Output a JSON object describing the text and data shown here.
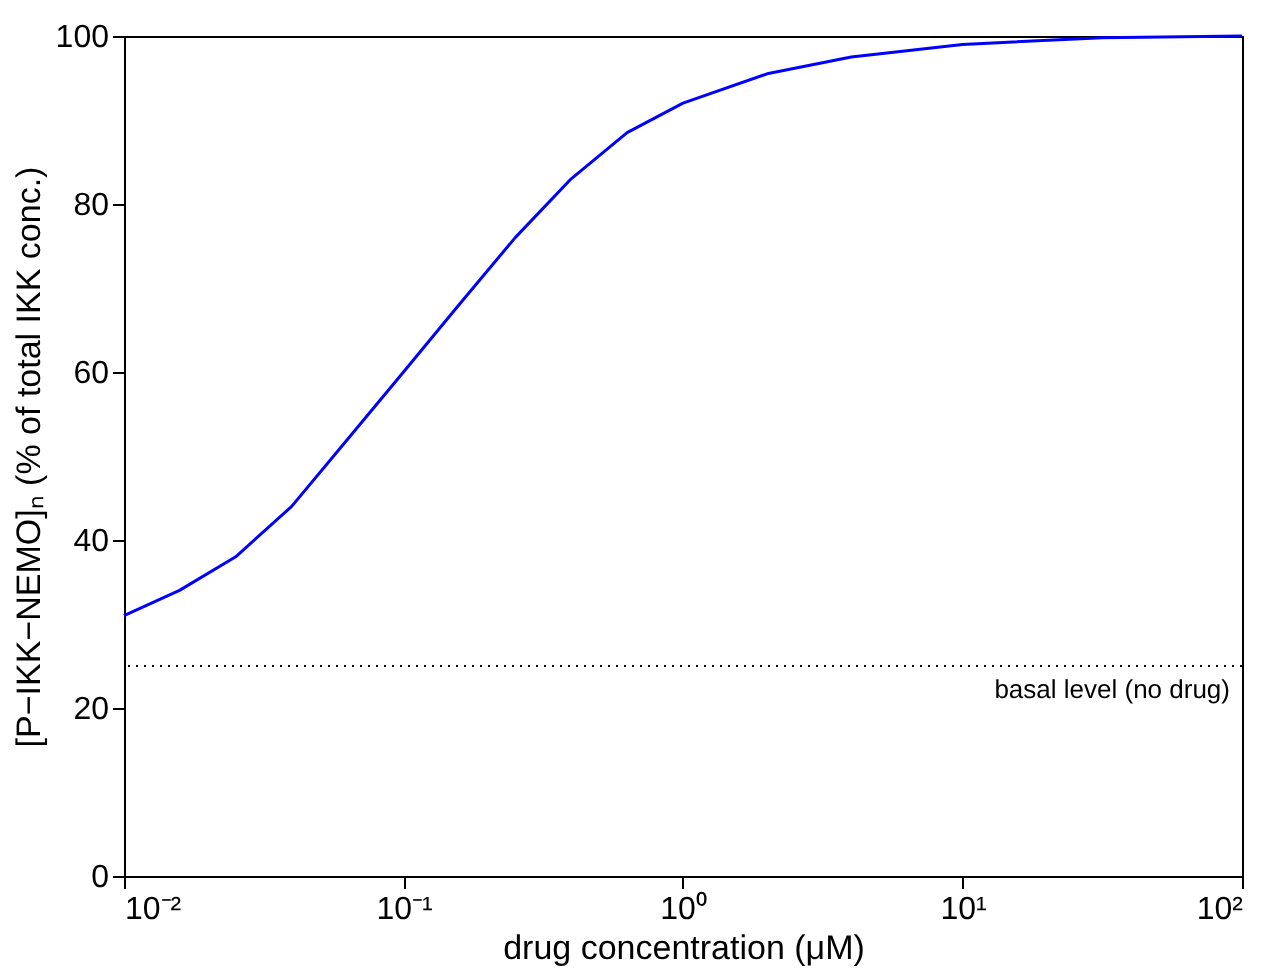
{
  "chart_data": {
    "type": "line",
    "xlabel": "drug concentration (μM)",
    "ylabel": "[P−IKK−NEMO]ₙ (% of total IKK conc.)",
    "x": [
      0.01,
      0.0158,
      0.0251,
      0.0398,
      0.0631,
      0.1,
      0.158,
      0.251,
      0.398,
      0.631,
      1,
      2,
      4,
      10,
      31.6,
      100
    ],
    "series": [
      {
        "color": "#0000ff",
        "values": [
          31,
          34,
          38,
          44,
          52,
          60,
          68,
          76,
          83,
          88.5,
          92,
          95.5,
          97.5,
          99,
          99.8,
          100
        ]
      }
    ],
    "log": "x",
    "xlim": [
      0.01,
      100
    ],
    "ylim": [
      0,
      100
    ],
    "xticks": [
      {
        "value": 0.01,
        "label": "10⁻²"
      },
      {
        "value": 0.1,
        "label": "10⁻¹"
      },
      {
        "value": 1,
        "label": "10⁰"
      },
      {
        "value": 10,
        "label": "10¹"
      },
      {
        "value": 100,
        "label": "10²"
      }
    ],
    "yticks": [
      0,
      20,
      40,
      60,
      80,
      100
    ],
    "ref_lines": [
      {
        "axis": "y",
        "value": 25,
        "label": "basal level (no drug)",
        "color": "#000000",
        "line_style": "dotted"
      }
    ],
    "marker": "none",
    "line_style": "solid"
  }
}
